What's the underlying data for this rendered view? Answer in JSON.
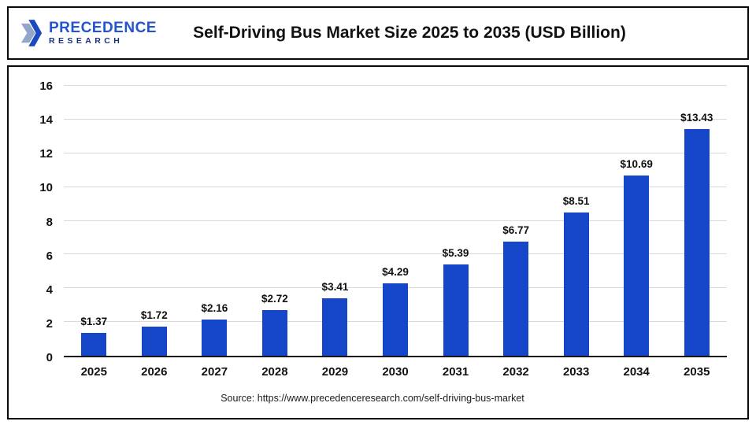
{
  "header": {
    "logo": {
      "line1": "PRECEDENCE",
      "line2": "RESEARCH",
      "mark_icon": "precedence-logo-mark",
      "color_primary": "#2355cf",
      "color_secondary": "#16337e"
    },
    "title": "Self-Driving Bus Market Size 2025 to 2035 (USD Billion)"
  },
  "chart_data": {
    "type": "bar",
    "title": "Self-Driving Bus Market Size 2025 to 2035 (USD Billion)",
    "categories": [
      "2025",
      "2026",
      "2027",
      "2028",
      "2029",
      "2030",
      "2031",
      "2032",
      "2033",
      "2034",
      "2035"
    ],
    "values": [
      1.37,
      1.72,
      2.16,
      2.72,
      3.41,
      4.29,
      5.39,
      6.77,
      8.51,
      10.69,
      13.43
    ],
    "labels": [
      "$1.37",
      "$1.72",
      "$2.16",
      "$2.72",
      "$3.41",
      "$4.29",
      "$5.39",
      "$6.77",
      "$8.51",
      "$10.69",
      "$13.43"
    ],
    "xlabel": "",
    "ylabel": "",
    "ylim": [
      0,
      16
    ],
    "yticks": [
      0,
      2,
      4,
      6,
      8,
      10,
      12,
      14,
      16
    ],
    "bar_color": "#1545c8",
    "grid": true,
    "legend": "none"
  },
  "footer": {
    "source": "Source: https://www.precedenceresearch.com/self-driving-bus-market"
  }
}
